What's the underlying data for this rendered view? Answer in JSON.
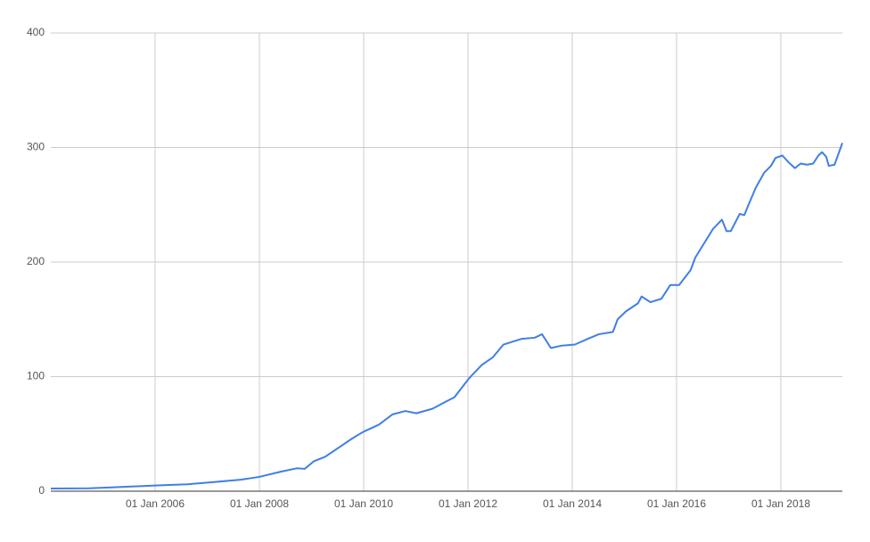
{
  "chart_data": {
    "type": "line",
    "x": [
      2004.0,
      2004.73,
      2005.76,
      2006.0,
      2006.62,
      2007.13,
      2007.64,
      2008.0,
      2008.41,
      2008.72,
      2008.87,
      2009.04,
      2009.26,
      2009.52,
      2009.78,
      2010.0,
      2010.29,
      2010.55,
      2010.8,
      2011.01,
      2011.32,
      2011.57,
      2011.74,
      2011.91,
      2012.03,
      2012.26,
      2012.48,
      2012.68,
      2013.03,
      2013.28,
      2013.42,
      2013.59,
      2013.79,
      2014.05,
      2014.3,
      2014.51,
      2014.78,
      2014.87,
      2015.03,
      2015.26,
      2015.33,
      2015.5,
      2015.71,
      2015.88,
      2016.05,
      2016.27,
      2016.36,
      2016.7,
      2016.87,
      2016.96,
      2017.04,
      2017.21,
      2017.3,
      2017.38,
      2017.52,
      2017.68,
      2017.81,
      2017.9,
      2018.03,
      2018.15,
      2018.27,
      2018.38,
      2018.5,
      2018.62,
      2018.72,
      2018.79,
      2018.87,
      2018.92,
      2019.03,
      2019.18
    ],
    "series": [
      {
        "color": "#3f7fe6",
        "values": [
          2.3,
          2.5,
          4.5,
          5,
          6,
          8,
          10,
          12.5,
          17,
          20,
          19.5,
          26,
          30,
          38,
          46,
          52,
          58,
          67,
          70,
          68,
          72,
          78,
          82,
          92,
          99,
          110,
          117,
          128,
          133,
          134,
          137,
          125,
          127,
          128,
          133,
          137,
          139,
          150,
          157,
          164,
          170,
          165,
          168,
          180,
          180,
          193,
          204,
          229,
          237,
          227,
          227,
          242,
          241,
          250,
          265,
          278,
          284,
          291,
          293,
          287,
          282,
          286,
          285,
          286,
          293,
          296,
          292,
          284,
          285,
          304
        ]
      }
    ],
    "xlim": [
      2004.0,
      2019.18
    ],
    "xticks": [
      {
        "value": 2006,
        "label": "01 Jan 2006"
      },
      {
        "value": 2008,
        "label": "01 Jan 2008"
      },
      {
        "value": 2010,
        "label": "01 Jan 2010"
      },
      {
        "value": 2012,
        "label": "01 Jan 2012"
      },
      {
        "value": 2014,
        "label": "01 Jan 2014"
      },
      {
        "value": 2016,
        "label": "01 Jan 2016"
      },
      {
        "value": 2018,
        "label": "01 Jan 2018"
      }
    ],
    "ylim": [
      0,
      400
    ],
    "yticks": [
      0,
      100,
      200,
      300,
      400
    ],
    "grid": true
  }
}
